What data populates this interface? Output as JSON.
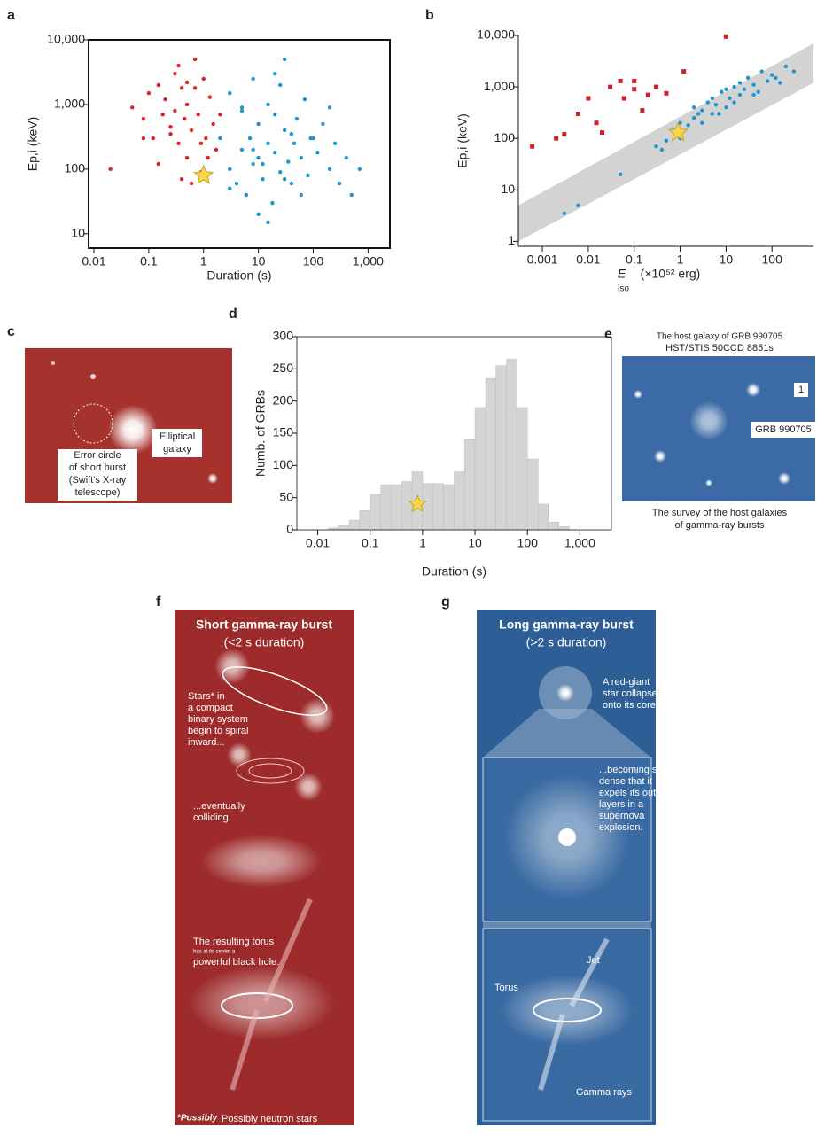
{
  "panel_labels": [
    "a",
    "b",
    "c",
    "d",
    "e",
    "f",
    "g"
  ],
  "chart_data": [
    {
      "type": "scatter",
      "xscale": "log",
      "yscale": "log",
      "x_label": "Duration (s)",
      "y_label": "Ep,i (keV)",
      "xlim": [
        0.008,
        2500
      ],
      "ylim": [
        6,
        10000
      ],
      "xticks": [
        {
          "value": 0.01,
          "label": "0.01"
        },
        0.1,
        1,
        10,
        100,
        {
          "value": 1000,
          "label": "1,000"
        }
      ],
      "yticks": [
        10,
        100,
        {
          "value": 1000,
          "label": "1,000"
        },
        {
          "value": 10000,
          "label": "10,000"
        }
      ],
      "series": [
        {
          "color": "#e0202e",
          "marker": "dot",
          "x": [
            0.02,
            0.05,
            0.08,
            0.1,
            0.12,
            0.15,
            0.18,
            0.2,
            0.25,
            0.3,
            0.3,
            0.35,
            0.4,
            0.45,
            0.5,
            0.5,
            0.6,
            0.7,
            0.8,
            0.9,
            1,
            1.1,
            1.3,
            1.5,
            1.7,
            2,
            0.15,
            0.25,
            0.4,
            0.6,
            0.35,
            0.7,
            1.2,
            0.08,
            0.5,
            0.9
          ],
          "values": [
            100,
            900,
            600,
            1500,
            300,
            2000,
            700,
            1200,
            450,
            3000,
            800,
            250,
            1800,
            600,
            150,
            1000,
            400,
            5000,
            700,
            90,
            2500,
            300,
            1300,
            500,
            200,
            700,
            120,
            350,
            70,
            60,
            4000,
            1800,
            150,
            300,
            2200,
            250
          ]
        },
        {
          "color": "#1a96d4",
          "marker": "dot",
          "x": [
            2,
            3,
            3,
            4,
            5,
            5,
            6,
            7,
            8,
            8,
            10,
            10,
            12,
            15,
            15,
            18,
            20,
            20,
            25,
            30,
            30,
            35,
            40,
            45,
            50,
            60,
            70,
            80,
            100,
            120,
            150,
            200,
            250,
            300,
            400,
            500,
            700,
            15,
            25,
            8,
            40,
            12,
            60,
            5,
            30,
            20,
            90,
            3,
            200,
            10
          ],
          "values": [
            300,
            100,
            1500,
            60,
            200,
            800,
            40,
            300,
            2500,
            120,
            150,
            500,
            70,
            250,
            1000,
            30,
            180,
            3000,
            90,
            400,
            5000,
            130,
            60,
            250,
            600,
            150,
            1200,
            80,
            300,
            180,
            500,
            100,
            250,
            60,
            150,
            40,
            100,
            15,
            2000,
            200,
            350,
            120,
            40,
            900,
            70,
            700,
            300,
            50,
            900,
            20
          ]
        },
        {
          "color": "#f7d64a",
          "marker": "star",
          "x": [
            1
          ],
          "values": [
            80
          ]
        }
      ]
    },
    {
      "type": "scatter",
      "xscale": "log",
      "yscale": "log",
      "x_label": "E",
      "x_label_sub": "iso",
      "x_label_unit": "(×10⁵² erg)",
      "y_label": "Ep,i (keV)",
      "xlim": [
        0.0003,
        800
      ],
      "ylim": [
        0.8,
        10000
      ],
      "xticks": [
        0.001,
        0.01,
        0.1,
        1,
        10,
        100
      ],
      "yticks": [
        1,
        10,
        100,
        {
          "value": 1000,
          "label": "1,000"
        },
        {
          "value": 10000,
          "label": "10,000"
        }
      ],
      "band": {
        "color": "#d3d3d3",
        "x": [
          0.0003,
          800
        ],
        "low": [
          1,
          1200
        ],
        "high": [
          5,
          7000
        ]
      },
      "series": [
        {
          "color": "#d0202a",
          "marker": "square",
          "x": [
            0.0006,
            0.002,
            0.003,
            0.006,
            0.01,
            0.015,
            0.02,
            0.03,
            0.05,
            0.06,
            0.1,
            0.1,
            0.15,
            0.2,
            0.3,
            0.5,
            1.2,
            10
          ],
          "values": [
            70,
            100,
            120,
            300,
            600,
            200,
            130,
            1000,
            1300,
            600,
            900,
            1300,
            350,
            700,
            1000,
            750,
            2000,
            9500
          ]
        },
        {
          "color": "#1a96d4",
          "marker": "dot",
          "x": [
            0.003,
            0.006,
            0.05,
            0.3,
            0.5,
            0.7,
            1,
            1,
            1.5,
            2,
            2,
            3,
            3,
            4,
            5,
            5,
            6,
            8,
            10,
            10,
            12,
            15,
            20,
            20,
            25,
            30,
            40,
            50,
            60,
            80,
            100,
            150,
            200,
            300,
            0.4,
            2.5,
            7,
            15,
            40,
            120
          ],
          "values": [
            3.5,
            5,
            20,
            70,
            90,
            150,
            100,
            200,
            180,
            250,
            400,
            200,
            350,
            500,
            300,
            600,
            450,
            800,
            400,
            900,
            600,
            1000,
            700,
            1200,
            900,
            1500,
            1100,
            800,
            2000,
            1300,
            1700,
            1200,
            2500,
            2000,
            60,
            300,
            300,
            500,
            700,
            1500
          ]
        },
        {
          "color": "#f7d64a",
          "marker": "star",
          "x": [
            0.9
          ],
          "values": [
            130
          ]
        }
      ]
    },
    {
      "type": "histogram",
      "xscale": "log",
      "x_label": "Duration (s)",
      "y_label": "Numb.  of GRBs",
      "color": "#d4d4d4",
      "xlim": [
        0.004,
        4000
      ],
      "ylim": [
        0,
        300
      ],
      "xticks": [
        0.01,
        0.1,
        1,
        10,
        100,
        {
          "value": 1000,
          "label": "1,000"
        }
      ],
      "yticks": [
        0,
        50,
        100,
        150,
        200,
        250,
        300
      ],
      "bins": [
        0.016,
        0.025,
        0.04,
        0.063,
        0.1,
        0.16,
        0.25,
        0.4,
        0.63,
        1,
        1.6,
        2.5,
        4,
        6.3,
        10,
        16,
        25,
        40,
        63,
        100,
        160,
        250,
        400,
        630
      ],
      "values": [
        3,
        8,
        15,
        30,
        55,
        70,
        70,
        75,
        90,
        72,
        72,
        70,
        90,
        140,
        190,
        235,
        255,
        265,
        190,
        110,
        40,
        12,
        5
      ],
      "star": {
        "color": "#f7d64a",
        "x": 0.8,
        "value": 40
      }
    }
  ],
  "photo_c": {
    "galaxy": [
      "Elliptical",
      "galaxy"
    ],
    "error_circle": [
      "Error circle",
      "of short burst",
      "(Swift's X-ray",
      "telescope)"
    ]
  },
  "photo_e": {
    "title": "The host galaxy of GRB 990705",
    "subtitle": "HST/STIS 50CCD 8851s",
    "marker": "1",
    "grb": "GRB 990705",
    "caption": [
      "The survey of the host galaxies",
      "of gamma-ray bursts"
    ]
  },
  "diagram_f": {
    "title": "Short gamma-ray burst",
    "subtitle": "(<2 s duration)",
    "step1": [
      "Stars* in",
      "a compact",
      "binary system",
      "begin to spiral",
      "inward..."
    ],
    "step2": [
      "...eventually",
      "colliding."
    ],
    "step3": [
      "The resulting torus",
      "has at its center a",
      "powerful black hole."
    ],
    "footnote_mark": "*Possibly",
    "footnote": "Possibly neutron stars"
  },
  "diagram_g": {
    "title": "Long gamma-ray burst",
    "subtitle": "(>2 s duration)",
    "step1": [
      "A red-giant",
      "star collapses",
      "onto its core..."
    ],
    "step2": [
      "...becoming so",
      "dense that it",
      "expels its outer",
      "layers in a",
      "supernova",
      "explosion."
    ],
    "jet": "Jet",
    "torus": "Torus",
    "gamma": "Gamma rays"
  }
}
